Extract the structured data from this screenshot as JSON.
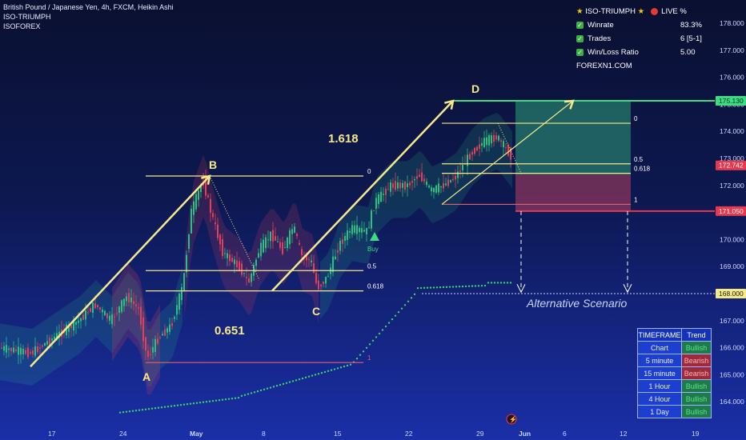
{
  "header": {
    "symbol": "British Pound / Japanese Yen, 4h, FXCM, Heikin Ashi",
    "indicator": "ISO-TRIUMPH ",
    "brand": "ISOFOREX"
  },
  "stats": {
    "title": "ISO-TRIUMPH",
    "live": "LIVE %",
    "rows": [
      {
        "label": "Winrate",
        "value": "83.3%"
      },
      {
        "label": "Trades",
        "value": "6 [5-1]"
      },
      {
        "label": "Win/Loss Ratio",
        "value": "5.00"
      }
    ],
    "site": "FOREXN1.COM"
  },
  "timeframe_table": {
    "headers": [
      "TIMEFRAME",
      "Trend"
    ],
    "rows": [
      {
        "tf": "Chart",
        "trend": "Bullish"
      },
      {
        "tf": "5 minute",
        "trend": "Bearish"
      },
      {
        "tf": "15 minute",
        "trend": "Bearish"
      },
      {
        "tf": "1 Hour",
        "trend": "Bullish"
      },
      {
        "tf": "4 Hour",
        "trend": "Bullish"
      },
      {
        "tf": "1 Day",
        "trend": "Bullish"
      }
    ]
  },
  "colors": {
    "wave": "#f5e98a",
    "bull": "#26c281",
    "bear": "#e0405a",
    "target": "#3ddc84",
    "stop": "#e53950",
    "dots": "#39d16e"
  },
  "chart_data": {
    "type": "line",
    "price_range": [
      163.2,
      178.6
    ],
    "y_ticks": [
      164,
      165,
      166,
      167,
      168,
      169,
      170,
      171,
      172,
      173,
      174,
      175,
      176,
      177,
      178
    ],
    "x_ticks": [
      "17",
      "24",
      "May",
      "8",
      "15",
      "22",
      "29",
      "Jun",
      "6",
      "12",
      "19"
    ],
    "waves": [
      {
        "label": "A",
        "x": "24",
        "price": 165.7
      },
      {
        "label": "B",
        "x": "May",
        "price": 172.3
      },
      {
        "label": "C",
        "x": "8",
        "price": 168.1
      },
      {
        "label": "D",
        "x": "29",
        "price": 175.1
      }
    ],
    "ratio_labels": [
      "0.651",
      "1.618"
    ],
    "fib_left": [
      {
        "label": "0",
        "price": 172.35
      },
      {
        "label": "0.5",
        "price": 168.85
      },
      {
        "label": "0.618",
        "price": 168.1
      },
      {
        "label": "1",
        "price": 165.45
      }
    ],
    "fib_right": [
      {
        "label": "0",
        "price": 174.3
      },
      {
        "label": "0.5",
        "price": 172.8
      },
      {
        "label": "0.618",
        "price": 172.45
      },
      {
        "label": "1",
        "price": 171.3
      }
    ],
    "price_labels": [
      {
        "value": "175.130",
        "price": 175.13
      },
      {
        "value": "172.742",
        "price": 172.742
      },
      {
        "value": "171.050",
        "price": 171.05
      },
      {
        "value": "168.000",
        "price": 168.0
      }
    ],
    "buy_label": "Buy",
    "scenario_label": "Alternative Scenario"
  }
}
